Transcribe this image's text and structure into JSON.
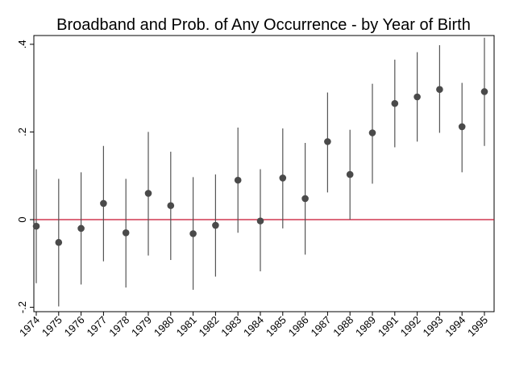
{
  "chart_data": {
    "type": "scatter",
    "title": "Broadband and Prob. of Any Occurrence - by Year of Birth",
    "xlabel": "",
    "ylabel": "",
    "categories": [
      "1974",
      "1975",
      "1976",
      "1977",
      "1978",
      "1979",
      "1980",
      "1981",
      "1982",
      "1983",
      "1984",
      "1985",
      "1986",
      "1987",
      "1988",
      "1989",
      "1991",
      "1992",
      "1993",
      "1994",
      "1995"
    ],
    "series": [
      {
        "estimate": [
          -0.015,
          -0.052,
          -0.02,
          0.037,
          -0.03,
          0.06,
          0.032,
          -0.032,
          -0.013,
          0.09,
          -0.003,
          0.095,
          0.048,
          0.178,
          0.103,
          0.198,
          0.265,
          0.28,
          0.297,
          0.212,
          0.292
        ],
        "ci_low": [
          -0.145,
          -0.198,
          -0.148,
          -0.095,
          -0.155,
          -0.082,
          -0.092,
          -0.16,
          -0.13,
          -0.03,
          -0.118,
          -0.02,
          -0.08,
          0.062,
          0.0,
          0.082,
          0.165,
          0.178,
          0.198,
          0.108,
          0.168
        ],
        "ci_high": [
          0.115,
          0.093,
          0.108,
          0.168,
          0.093,
          0.2,
          0.155,
          0.097,
          0.103,
          0.21,
          0.115,
          0.208,
          0.175,
          0.29,
          0.205,
          0.31,
          0.365,
          0.382,
          0.398,
          0.312,
          0.415
        ]
      }
    ],
    "ylim": [
      -0.21,
      0.42
    ],
    "yticks": [
      -0.2,
      0,
      0.2,
      0.4
    ],
    "ytick_labels": [
      "-.2",
      "0",
      ".2",
      ".4"
    ],
    "reference_line": {
      "y": 0,
      "color": "#c8102e"
    },
    "colors": {
      "marker": "#4a4a4a",
      "ci_line": "#555555",
      "frame": "#000000"
    },
    "grid": false,
    "legend": "none"
  }
}
